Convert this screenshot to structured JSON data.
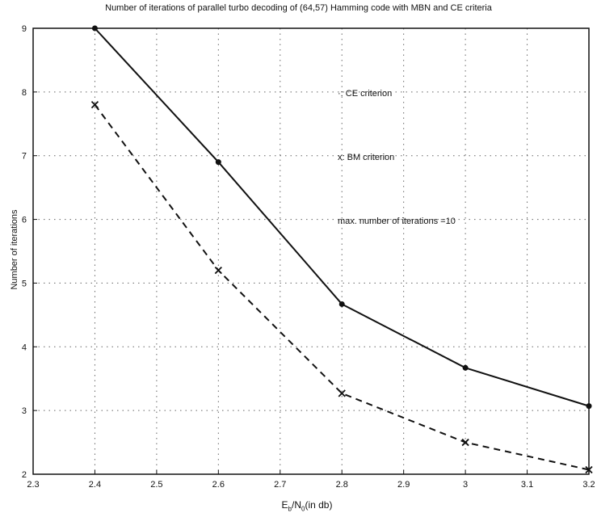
{
  "chart_data": {
    "type": "line",
    "title": "Number of iterations of parallel turbo decoding of (64,57) Hamming code with MBN and CE criteria",
    "xlabel_main": "E",
    "xlabel_sub1": "b",
    "xlabel_mid": "/N",
    "xlabel_sub2": "0",
    "xlabel_tail": "(in db)",
    "ylabel": "Number of iterations",
    "xlim": [
      2.3,
      3.2
    ],
    "ylim": [
      2,
      9
    ],
    "xticks": [
      "2.3",
      "2.4",
      "2.5",
      "2.6",
      "2.7",
      "2.8",
      "2.9",
      "3",
      "3.1",
      "3.2"
    ],
    "yticks": [
      "2",
      "3",
      "4",
      "5",
      "6",
      "7",
      "8",
      "9"
    ],
    "grid": "dotted",
    "series": [
      {
        "name": "CE criterion",
        "style": "solid",
        "marker": "dot",
        "color": "#111111",
        "x": [
          2.4,
          2.6,
          2.8,
          3.0,
          3.2
        ],
        "y": [
          9.0,
          6.9,
          4.67,
          3.67,
          3.07
        ]
      },
      {
        "name": "BM criterion",
        "style": "dashed",
        "marker": "x",
        "color": "#111111",
        "x": [
          2.4,
          2.6,
          2.8,
          3.0,
          3.2
        ],
        "y": [
          7.8,
          5.2,
          3.27,
          2.5,
          2.07
        ]
      }
    ],
    "annotations": {
      "ce": "·: CE criterion",
      "bm": "x: BM criterion",
      "max": "max. number of iterations =10"
    }
  }
}
